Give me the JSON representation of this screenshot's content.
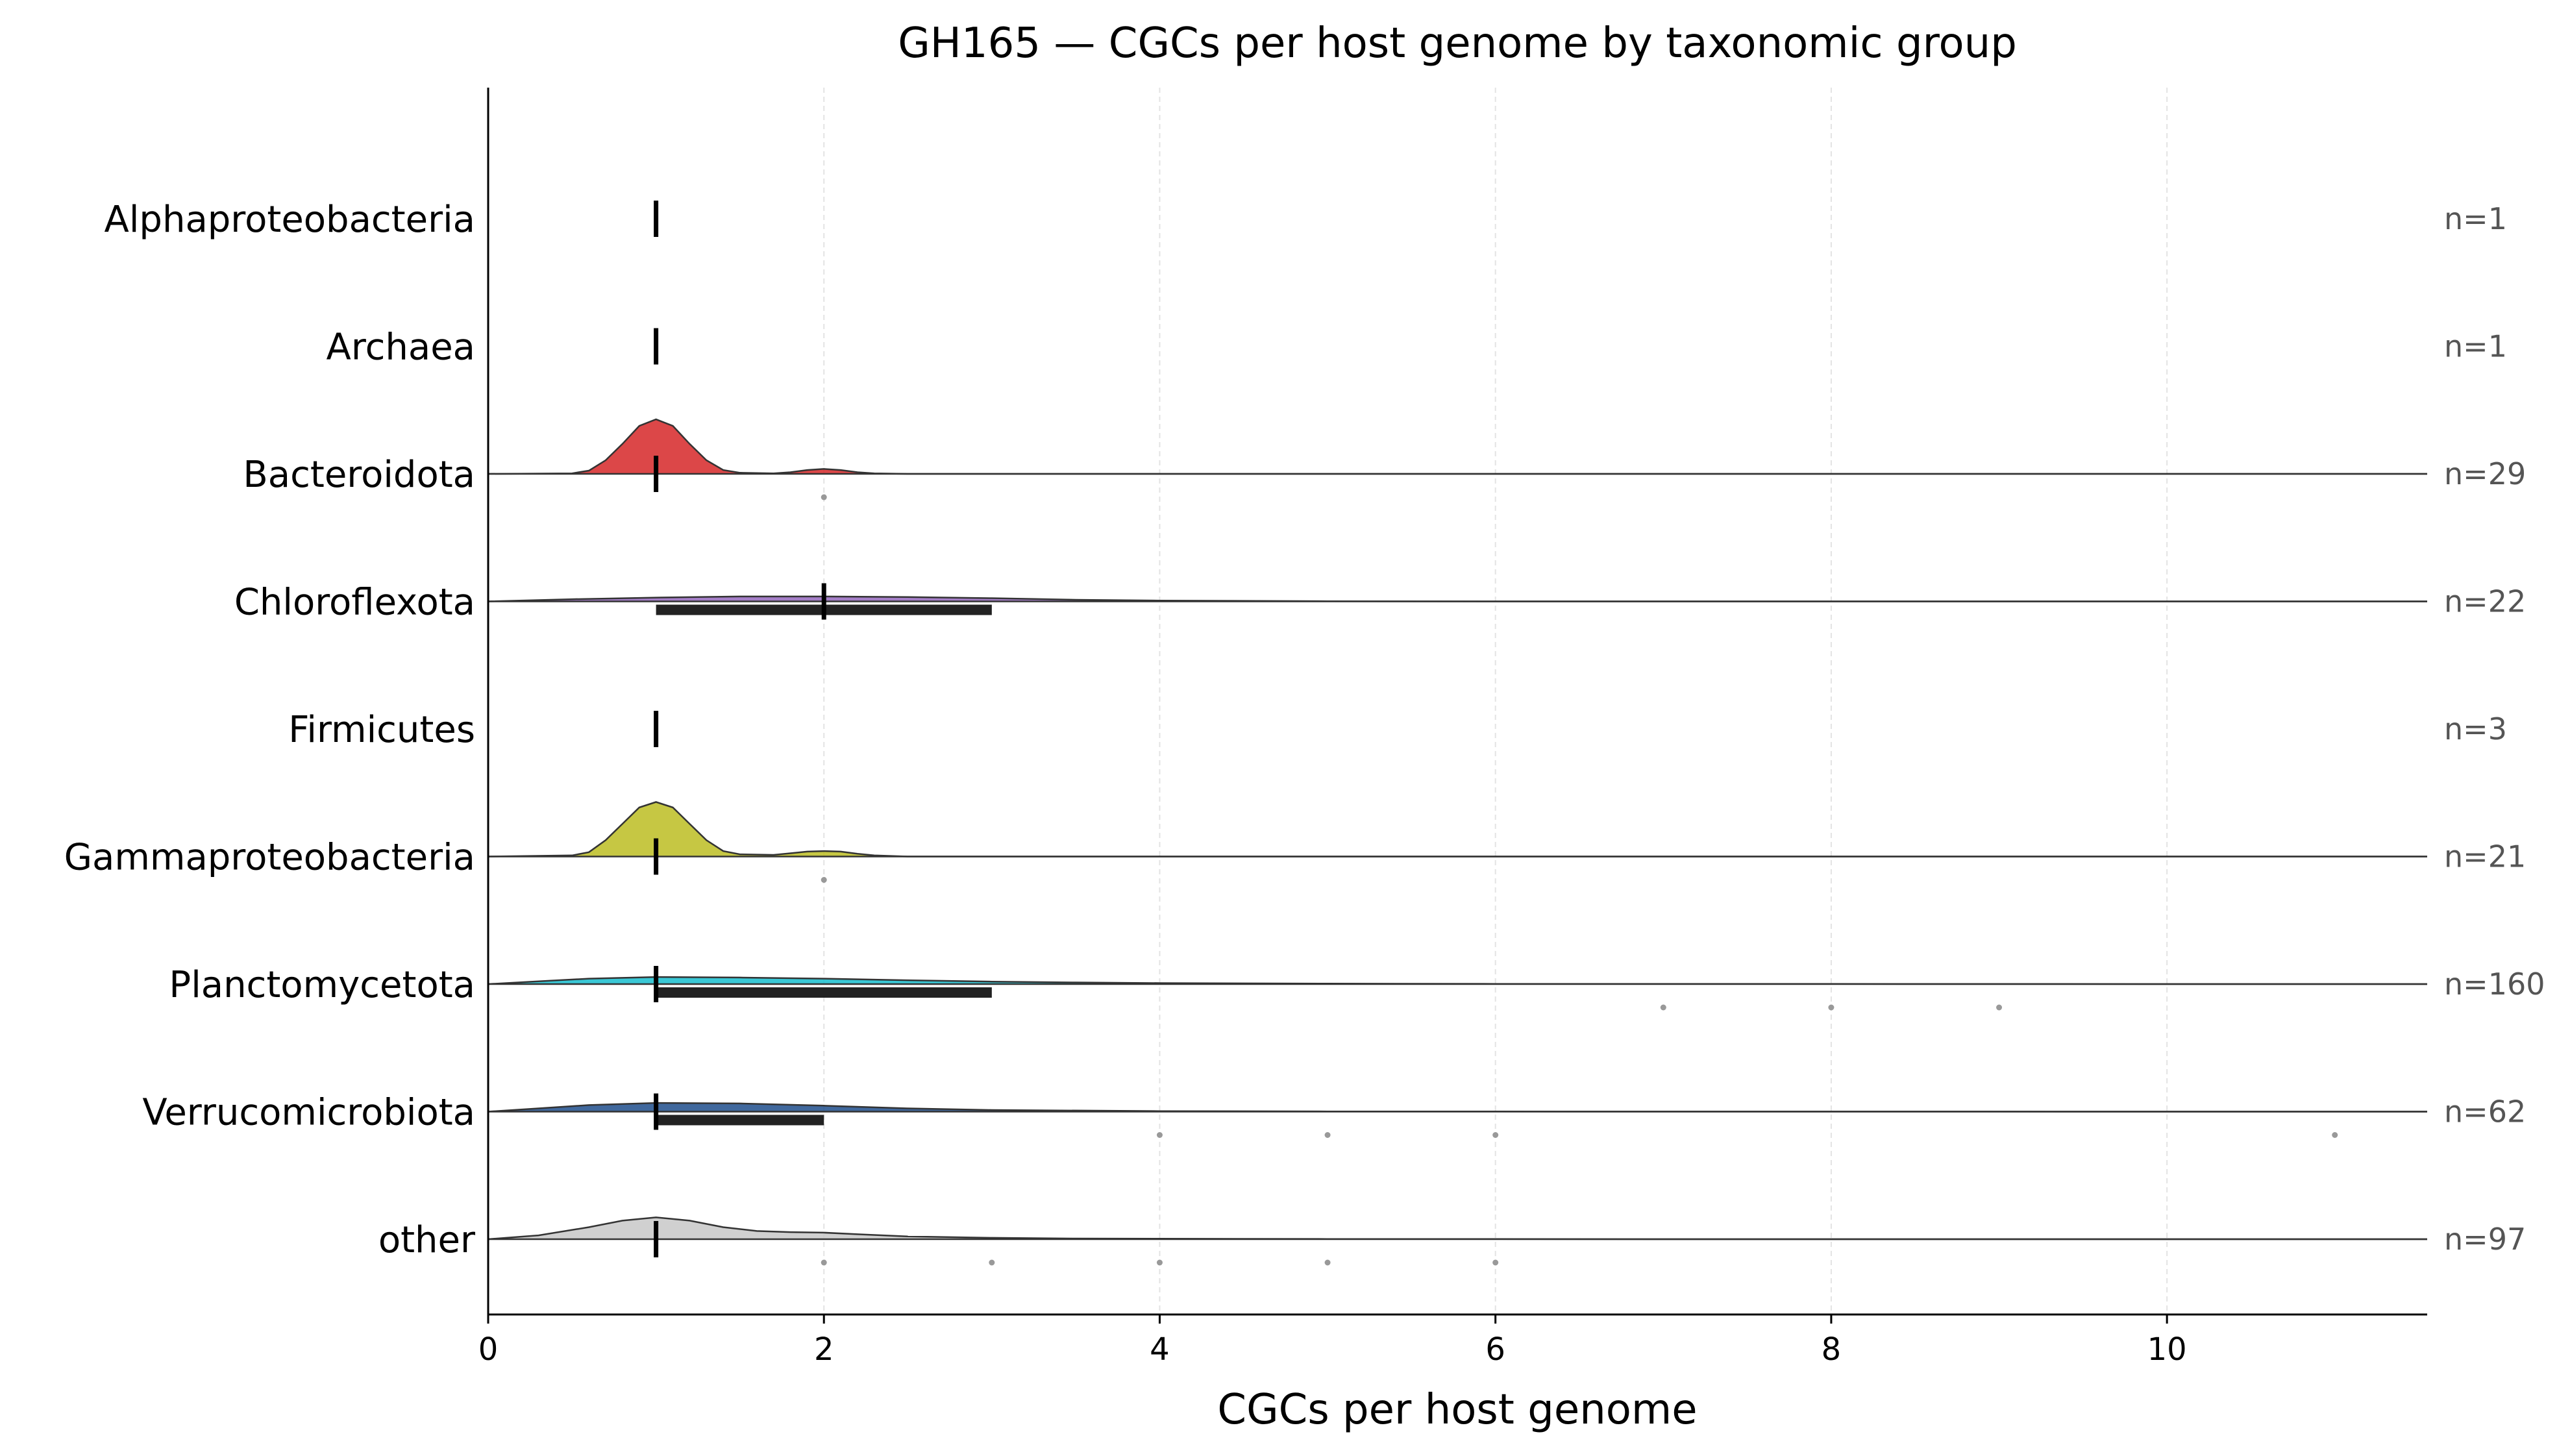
{
  "chart_data": {
    "type": "ridgeline",
    "title": "GH165 — CGCs per host genome by taxonomic group",
    "xlabel": "CGCs per host genome",
    "ylabel": "",
    "xlim": [
      0,
      11.55
    ],
    "xticks": [
      0,
      2,
      4,
      6,
      8,
      10
    ],
    "xtick_labels": [
      "0",
      "2",
      "4",
      "6",
      "8",
      "10"
    ],
    "grid": "x dashed",
    "groups": [
      {
        "name": "Alphaproteobacteria",
        "n_label": "n=1",
        "color": "",
        "median": 1,
        "q1": 1,
        "q3": 1,
        "outliers": [],
        "density": []
      },
      {
        "name": "Archaea",
        "n_label": "n=1",
        "color": "",
        "median": 1,
        "q1": 1,
        "q3": 1,
        "outliers": [],
        "density": []
      },
      {
        "name": "Bacteroidota",
        "n_label": "n=29",
        "color": "#d62728",
        "median": 1,
        "q1": 1,
        "q3": 1,
        "outliers": [
          2
        ],
        "density": [
          [
            0,
            0
          ],
          [
            0.5,
            0.01
          ],
          [
            0.6,
            0.06
          ],
          [
            0.7,
            0.25
          ],
          [
            0.8,
            0.55
          ],
          [
            0.9,
            0.88
          ],
          [
            1.0,
            1.0
          ],
          [
            1.1,
            0.88
          ],
          [
            1.2,
            0.55
          ],
          [
            1.3,
            0.25
          ],
          [
            1.4,
            0.07
          ],
          [
            1.5,
            0.02
          ],
          [
            1.7,
            0.01
          ],
          [
            1.8,
            0.03
          ],
          [
            1.9,
            0.07
          ],
          [
            2.0,
            0.09
          ],
          [
            2.1,
            0.07
          ],
          [
            2.2,
            0.03
          ],
          [
            2.3,
            0.01
          ],
          [
            2.5,
            0
          ],
          [
            11.55,
            0
          ]
        ]
      },
      {
        "name": "Chloroflexota",
        "n_label": "n=22",
        "color": "#9467bd",
        "median": 2,
        "q1": 1,
        "q3": 3,
        "outliers": [],
        "density": [
          [
            0,
            0
          ],
          [
            0.5,
            0.04
          ],
          [
            1.0,
            0.07
          ],
          [
            1.5,
            0.09
          ],
          [
            2.0,
            0.09
          ],
          [
            2.5,
            0.08
          ],
          [
            3.0,
            0.06
          ],
          [
            3.5,
            0.03
          ],
          [
            4.0,
            0.015
          ],
          [
            5.0,
            0.004
          ],
          [
            6.0,
            0
          ],
          [
            11.55,
            0
          ]
        ]
      },
      {
        "name": "Firmicutes",
        "n_label": "n=3",
        "color": "",
        "median": 1,
        "q1": 1,
        "q3": 1,
        "outliers": [],
        "density": []
      },
      {
        "name": "Gammaproteobacteria",
        "n_label": "n=21",
        "color": "#bcbd22",
        "median": 1,
        "q1": 1,
        "q3": 1,
        "outliers": [
          2
        ],
        "density": [
          [
            0,
            0
          ],
          [
            0.5,
            0.02
          ],
          [
            0.6,
            0.08
          ],
          [
            0.7,
            0.3
          ],
          [
            0.8,
            0.6
          ],
          [
            0.9,
            0.9
          ],
          [
            1.0,
            1.0
          ],
          [
            1.1,
            0.9
          ],
          [
            1.2,
            0.6
          ],
          [
            1.3,
            0.3
          ],
          [
            1.4,
            0.1
          ],
          [
            1.5,
            0.04
          ],
          [
            1.7,
            0.03
          ],
          [
            1.8,
            0.06
          ],
          [
            1.9,
            0.09
          ],
          [
            2.0,
            0.1
          ],
          [
            2.1,
            0.09
          ],
          [
            2.2,
            0.05
          ],
          [
            2.3,
            0.02
          ],
          [
            2.5,
            0
          ],
          [
            11.55,
            0
          ]
        ]
      },
      {
        "name": "Planctomycetota",
        "n_label": "n=160",
        "color": "#17becf",
        "median": 1,
        "q1": 1,
        "q3": 3,
        "outliers": [
          7,
          8,
          9
        ],
        "density": [
          [
            0,
            0
          ],
          [
            0.3,
            0.05
          ],
          [
            0.6,
            0.1
          ],
          [
            1.0,
            0.13
          ],
          [
            1.5,
            0.12
          ],
          [
            2.0,
            0.1
          ],
          [
            2.5,
            0.07
          ],
          [
            3.0,
            0.045
          ],
          [
            3.5,
            0.03
          ],
          [
            4.0,
            0.018
          ],
          [
            5.0,
            0.008
          ],
          [
            6.0,
            0.004
          ],
          [
            7.0,
            0.003
          ],
          [
            8.0,
            0.002
          ],
          [
            9.0,
            0.001
          ],
          [
            10.0,
            0
          ],
          [
            11.55,
            0
          ]
        ]
      },
      {
        "name": "Verrucomicrobiota",
        "n_label": "n=62",
        "color": "#1f4e8c",
        "median": 1,
        "q1": 1,
        "q3": 2,
        "outliers": [
          4,
          5,
          6,
          11
        ],
        "density": [
          [
            0,
            0
          ],
          [
            0.3,
            0.06
          ],
          [
            0.6,
            0.12
          ],
          [
            1.0,
            0.16
          ],
          [
            1.5,
            0.15
          ],
          [
            2.0,
            0.11
          ],
          [
            2.5,
            0.06
          ],
          [
            3.0,
            0.03
          ],
          [
            4.0,
            0.01
          ],
          [
            5.0,
            0.004
          ],
          [
            6.0,
            0.002
          ],
          [
            8.0,
            0.001
          ],
          [
            11.0,
            0
          ],
          [
            11.55,
            0
          ]
        ]
      },
      {
        "name": "other",
        "n_label": "n=97",
        "color": "#c8c8c8",
        "median": 1,
        "q1": 1,
        "q3": 1,
        "outliers": [
          2,
          3,
          4,
          5,
          6
        ],
        "density": [
          [
            0,
            0
          ],
          [
            0.3,
            0.07
          ],
          [
            0.6,
            0.22
          ],
          [
            0.8,
            0.34
          ],
          [
            1.0,
            0.4
          ],
          [
            1.2,
            0.34
          ],
          [
            1.4,
            0.22
          ],
          [
            1.6,
            0.15
          ],
          [
            1.8,
            0.13
          ],
          [
            2.0,
            0.12
          ],
          [
            2.2,
            0.09
          ],
          [
            2.5,
            0.05
          ],
          [
            3.0,
            0.025
          ],
          [
            3.5,
            0.012
          ],
          [
            4.0,
            0.008
          ],
          [
            5.0,
            0.004
          ],
          [
            6.0,
            0.002
          ],
          [
            7.0,
            0
          ],
          [
            11.55,
            0
          ]
        ]
      }
    ]
  }
}
